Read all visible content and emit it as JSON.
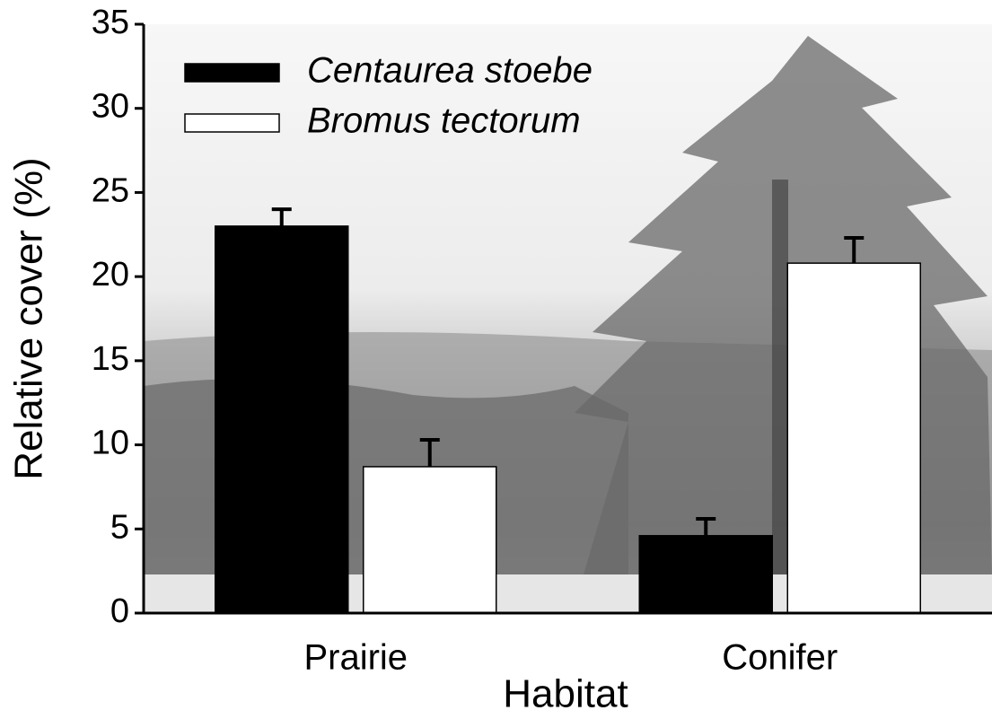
{
  "chart_data": {
    "type": "bar",
    "x_label": "Habitat",
    "y_label": "Relative cover (%)",
    "categories": [
      "Prairie",
      "Conifer"
    ],
    "series": [
      {
        "name": "Centaurea stoebe",
        "color": "#000000",
        "values": [
          23,
          4.6
        ],
        "errors": [
          1,
          1
        ]
      },
      {
        "name": "Bromus tectorum",
        "color": "#ffffff",
        "values": [
          8.7,
          20.8
        ],
        "errors": [
          1.6,
          1.5
        ]
      }
    ],
    "ylim": [
      0,
      35
    ],
    "yticks": [
      0,
      5,
      10,
      15,
      20,
      25,
      30,
      35
    ],
    "legend": "upper left"
  }
}
